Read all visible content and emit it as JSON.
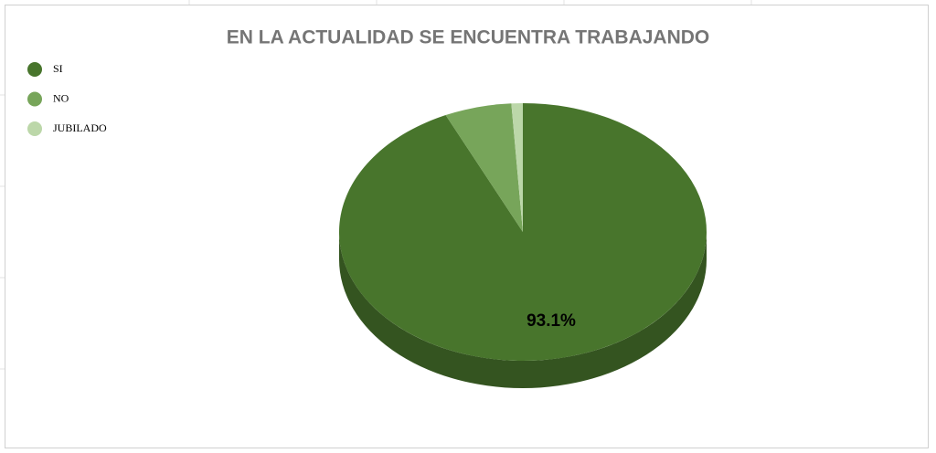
{
  "chart_data": {
    "type": "pie3d",
    "title": "EN LA ACTUALIDAD SE ENCUENTRA TRABAJANDO",
    "categories": [
      "SI",
      "NO",
      "JUBILADO"
    ],
    "values": [
      93.1,
      5.9,
      1.0
    ],
    "value_labels": [
      "93.1%",
      null,
      null
    ],
    "colors": [
      "#48752c",
      "#77a55a",
      "#bcd7a9"
    ],
    "legend": "top-left"
  }
}
